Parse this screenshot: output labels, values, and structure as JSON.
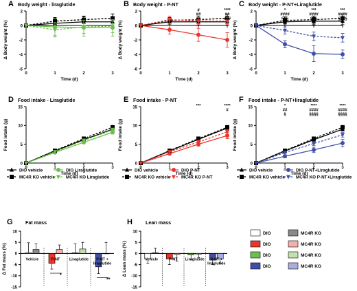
{
  "figure": {
    "time_label": "Time (d)",
    "colors": {
      "black": "#000000",
      "red": "#e8362b",
      "green": "#6cbf4a",
      "blue": "#3f4fa8",
      "grey": "#8a8a8a",
      "pink": "#f2b0ad",
      "light_green": "#bfe1b0",
      "light_blue": "#a9aede"
    },
    "legends": {
      "liraglutide": [
        "DIO vehicle",
        "DIO Liraglutide",
        "MC4R KO vehicle",
        "MC4R KO Liraglutide"
      ],
      "pnt": [
        "DIO vehicle",
        "DIO P-NT",
        "MC4R KO vehicle",
        "MC4R KO P-NT"
      ],
      "combo": [
        "DIO vehicle",
        "DIO P-NT+Liraglutide",
        "MC4R KO vehicle",
        "MC4R KO P-NT+Liraglutide"
      ]
    },
    "key": [
      {
        "label": "DIO",
        "color": "#ffffff"
      },
      {
        "label": "MC4R KO",
        "color": "#8a8a8a"
      },
      {
        "label": "DIO",
        "color": "#e8362b"
      },
      {
        "label": "MC4R KO",
        "color": "#f2b0ad"
      },
      {
        "label": "DIO",
        "color": "#6cbf4a"
      },
      {
        "label": "MC4R KO",
        "color": "#bfe1b0"
      },
      {
        "label": "DIO",
        "color": "#3f4fa8"
      },
      {
        "label": "MC4R KO",
        "color": "#a9aede"
      }
    ]
  },
  "chart_data": [
    {
      "panel": "A",
      "type": "line",
      "title": "Body weight - liraglutide",
      "xlabel": "Time (d)",
      "ylabel": "Δ Body weight (%)",
      "ylim": [
        -6,
        2
      ],
      "yticks": [
        "2",
        "0",
        "-2",
        "-4",
        "-6"
      ],
      "x": [
        0,
        1,
        2,
        3
      ],
      "xticks": [
        "0",
        "1",
        "2",
        "3"
      ],
      "series": [
        {
          "name": "DIO vehicle",
          "color": "#000000",
          "marker": "triangle",
          "dashed": false,
          "values": [
            0,
            0.3,
            0.5,
            0.5
          ],
          "err": [
            0,
            0.6,
            0.7,
            0.7
          ]
        },
        {
          "name": "DIO Liraglutide",
          "color": "#6cbf4a",
          "marker": "circle",
          "dashed": false,
          "values": [
            0,
            -0.2,
            -0.3,
            -0.3
          ],
          "err": [
            0,
            1.2,
            1.2,
            1.2
          ]
        },
        {
          "name": "MC4R KO vehicle",
          "color": "#000000",
          "marker": "square",
          "dashed": true,
          "values": [
            0,
            0.6,
            0.8,
            1.0
          ],
          "err": [
            0,
            0.5,
            0.5,
            0.6
          ]
        },
        {
          "name": "MC4R KO Liraglutide",
          "color": "#6cbf4a",
          "marker": "triangle-down",
          "dashed": true,
          "values": [
            0,
            -0.6,
            -0.2,
            -0.1
          ],
          "err": [
            0,
            1.0,
            0.9,
            0.9
          ]
        }
      ],
      "annotations": []
    },
    {
      "panel": "B",
      "type": "line",
      "title": "Body weight - P-NT",
      "xlabel": "Time (d)",
      "ylabel": "Δ Body weight (%)",
      "ylim": [
        -6,
        2
      ],
      "yticks": [
        "2",
        "0",
        "-2",
        "-4",
        "-6"
      ],
      "x": [
        0,
        1,
        2,
        3
      ],
      "xticks": [
        "0",
        "1",
        "2",
        "3"
      ],
      "series": [
        {
          "name": "DIO vehicle",
          "color": "#000000",
          "marker": "triangle",
          "dashed": false,
          "values": [
            0,
            0.5,
            0.5,
            0.5
          ],
          "err": [
            0,
            0.4,
            0.5,
            0.5
          ]
        },
        {
          "name": "DIO P-NT",
          "color": "#e8362b",
          "marker": "circle",
          "dashed": false,
          "values": [
            0,
            -0.6,
            -1.3,
            -2.0
          ],
          "err": [
            0,
            0.6,
            0.9,
            1.0
          ]
        },
        {
          "name": "MC4R KO vehicle",
          "color": "#000000",
          "marker": "square",
          "dashed": true,
          "values": [
            0,
            0.7,
            0.8,
            1.0
          ],
          "err": [
            0,
            0.4,
            0.5,
            0.5
          ]
        },
        {
          "name": "MC4R KO P-NT",
          "color": "#e8362b",
          "marker": "triangle-down",
          "dashed": true,
          "values": [
            0,
            0.8,
            0.6,
            0.6
          ],
          "err": [
            0,
            0.5,
            0.5,
            0.5
          ]
        }
      ],
      "annotations": [
        {
          "x": 2,
          "lines": [
            "#",
            "##"
          ]
        },
        {
          "x": 3,
          "lines": [
            "****",
            "##",
            "###"
          ]
        }
      ]
    },
    {
      "panel": "C",
      "type": "line",
      "title": "Body weight - P-NT+Liraglutide",
      "xlabel": "Time (d)",
      "ylabel": "Δ Body weight (%)",
      "ylim": [
        -6,
        2
      ],
      "yticks": [
        "2",
        "0",
        "-2",
        "-4",
        "-6"
      ],
      "x": [
        0,
        1,
        2,
        3
      ],
      "xticks": [
        "0",
        "1",
        "2",
        "3"
      ],
      "series": [
        {
          "name": "DIO vehicle",
          "color": "#000000",
          "marker": "triangle",
          "dashed": false,
          "values": [
            0,
            0.5,
            0.6,
            0.6
          ],
          "err": [
            0,
            0.5,
            0.5,
            0.5
          ]
        },
        {
          "name": "DIO P-NT+Liraglutide",
          "color": "#3f4fa8",
          "marker": "circle",
          "dashed": false,
          "values": [
            0,
            -2.6,
            -3.9,
            -4.0
          ],
          "err": [
            0,
            0.5,
            1.1,
            0.6
          ]
        },
        {
          "name": "MC4R KO vehicle",
          "color": "#000000",
          "marker": "square",
          "dashed": true,
          "values": [
            0,
            0.7,
            0.8,
            1.0
          ],
          "err": [
            0,
            0.5,
            0.5,
            0.5
          ]
        },
        {
          "name": "MC4R KO P-NT+Liraglutide",
          "color": "#3f4fa8",
          "marker": "triangle-down",
          "dashed": true,
          "values": [
            0,
            -0.7,
            -1.5,
            -1.7
          ],
          "err": [
            0,
            0.5,
            0.6,
            0.6
          ]
        }
      ],
      "annotations": [
        {
          "x": 1,
          "lines": [
            "*",
            "####",
            "§§§"
          ]
        },
        {
          "x": 2,
          "lines": [
            "***",
            "####",
            "§§§"
          ]
        },
        {
          "x": 3,
          "lines": [
            "***",
            "####",
            "§§§§"
          ]
        }
      ]
    },
    {
      "panel": "D",
      "type": "line",
      "title": "Food intake - Liraglutide",
      "xlabel": "Time (d)",
      "ylabel": "Food intake (g)",
      "ylim": [
        0,
        15
      ],
      "yticks": [
        "0",
        "5",
        "10",
        "15"
      ],
      "x": [
        0,
        1,
        2,
        3
      ],
      "xticks": [
        "0",
        "1",
        "2",
        "3"
      ],
      "series": [
        {
          "name": "DIO vehicle",
          "color": "#000000",
          "marker": "triangle",
          "dashed": false,
          "values": [
            0,
            3.2,
            6.2,
            9.0
          ],
          "err": [
            0,
            0.3,
            0.4,
            0.5
          ]
        },
        {
          "name": "DIO Liraglutide",
          "color": "#6cbf4a",
          "marker": "circle",
          "dashed": false,
          "values": [
            0,
            2.8,
            5.5,
            8.2
          ],
          "err": [
            0,
            0.3,
            0.4,
            0.5
          ]
        },
        {
          "name": "MC4R KO vehicle",
          "color": "#000000",
          "marker": "square",
          "dashed": true,
          "values": [
            0,
            3.3,
            6.5,
            9.5
          ],
          "err": [
            0,
            0.3,
            0.4,
            0.5
          ]
        },
        {
          "name": "MC4R KO Liraglutide",
          "color": "#6cbf4a",
          "marker": "triangle-down",
          "dashed": true,
          "values": [
            0,
            3.0,
            6.0,
            8.8
          ],
          "err": [
            0,
            0.3,
            0.4,
            0.5
          ]
        }
      ],
      "annotations": []
    },
    {
      "panel": "E",
      "type": "line",
      "title": "Food intake - P-NT",
      "xlabel": "Time (d)",
      "ylabel": "Food intake (g)",
      "ylim": [
        0,
        15
      ],
      "yticks": [
        "0",
        "5",
        "10",
        "15"
      ],
      "x": [
        0,
        1,
        2,
        3
      ],
      "xticks": [
        "0",
        "1",
        "2",
        "3"
      ],
      "series": [
        {
          "name": "DIO vehicle",
          "color": "#000000",
          "marker": "triangle",
          "dashed": false,
          "values": [
            0,
            3.2,
            6.3,
            9.3
          ],
          "err": [
            0,
            0.3,
            0.4,
            0.5
          ]
        },
        {
          "name": "DIO P-NT",
          "color": "#e8362b",
          "marker": "circle",
          "dashed": false,
          "values": [
            0,
            2.5,
            5.0,
            7.3
          ],
          "err": [
            0,
            0.3,
            0.5,
            0.8
          ]
        },
        {
          "name": "MC4R KO vehicle",
          "color": "#000000",
          "marker": "square",
          "dashed": true,
          "values": [
            0,
            3.3,
            6.5,
            9.5
          ],
          "err": [
            0,
            0.3,
            0.4,
            0.5
          ]
        },
        {
          "name": "MC4R KO P-NT",
          "color": "#e8362b",
          "marker": "triangle-down",
          "dashed": true,
          "values": [
            0,
            3.0,
            5.6,
            8.3
          ],
          "err": [
            0,
            0.3,
            0.5,
            0.6
          ]
        }
      ],
      "annotations": [
        {
          "x": 2,
          "lines": [
            "***"
          ]
        },
        {
          "x": 3,
          "lines": [
            "****",
            "#"
          ]
        }
      ]
    },
    {
      "panel": "F",
      "type": "line",
      "title": "Food intake - P-NT+liraglutide",
      "xlabel": "Time (d)",
      "ylabel": "Food intake (g)",
      "ylim": [
        0,
        15
      ],
      "yticks": [
        "0",
        "5",
        "10",
        "15"
      ],
      "x": [
        0,
        1,
        2,
        3
      ],
      "xticks": [
        "0",
        "1",
        "2",
        "3"
      ],
      "series": [
        {
          "name": "DIO vehicle",
          "color": "#000000",
          "marker": "triangle",
          "dashed": false,
          "values": [
            0,
            3.2,
            6.2,
            9.0
          ],
          "err": [
            0,
            0.3,
            0.4,
            0.5
          ]
        },
        {
          "name": "DIO P-NT+Liraglutide",
          "color": "#3f4fa8",
          "marker": "circle",
          "dashed": false,
          "values": [
            0,
            1.8,
            3.5,
            5.3
          ],
          "err": [
            0,
            0.4,
            0.7,
            1.0
          ]
        },
        {
          "name": "MC4R KO vehicle",
          "color": "#000000",
          "marker": "square",
          "dashed": true,
          "values": [
            0,
            3.3,
            6.5,
            9.5
          ],
          "err": [
            0,
            0.3,
            0.4,
            0.5
          ]
        },
        {
          "name": "MC4R KO P-NT+Liraglutide",
          "color": "#3f4fa8",
          "marker": "triangle-down",
          "dashed": true,
          "values": [
            0,
            2.8,
            5.2,
            7.5
          ],
          "err": [
            0,
            0.3,
            0.5,
            0.6
          ]
        }
      ],
      "annotations": [
        {
          "x": 1,
          "lines": [
            "*",
            "##",
            "§"
          ]
        },
        {
          "x": 2,
          "lines": [
            "****",
            "####",
            "§§§§"
          ]
        },
        {
          "x": 3,
          "lines": [
            "****",
            "####",
            "§§§§"
          ]
        }
      ]
    },
    {
      "panel": "G",
      "type": "bar",
      "title": "Fat mass",
      "ylabel": "Δ Fat mass (%)",
      "ylim": [
        -15,
        10
      ],
      "yticks": [
        "10",
        "5",
        "0",
        "-5",
        "-10",
        "-15"
      ],
      "groups": [
        "Vehicle",
        "P-NT",
        "Liraglutide",
        "P-NT + liraglutide"
      ],
      "series": [
        {
          "name": "DIO",
          "fills": [
            "#ffffff",
            "#e8362b",
            "#6cbf4a",
            "#3f4fa8"
          ],
          "values": [
            0.3,
            -4.5,
            0.3,
            -6.0
          ],
          "err": [
            4.5,
            2.5,
            4.0,
            3.0
          ]
        },
        {
          "name": "MC4R KO",
          "fills": [
            "#8a8a8a",
            "#f2b0ad",
            "#bfe1b0",
            "#a9aede"
          ],
          "values": [
            1.8,
            1.8,
            2.0,
            0.0
          ],
          "err": [
            2.5,
            2.0,
            3.0,
            5.0
          ]
        }
      ],
      "annotations": [
        {
          "group": 1,
          "text": "*"
        },
        {
          "group": 3,
          "text": "**"
        }
      ]
    },
    {
      "panel": "H",
      "type": "bar",
      "title": "Lean mass",
      "ylabel": "Δ Lean mass (%)",
      "ylim": [
        -15,
        10
      ],
      "yticks": [
        "10",
        "5",
        "0",
        "-5",
        "-10",
        "-15"
      ],
      "groups": [
        "Vehicle",
        "P-NT",
        "Liraglutide",
        "P-NT + liraglutide"
      ],
      "series": [
        {
          "name": "DIO",
          "fills": [
            "#ffffff",
            "#e8362b",
            "#6cbf4a",
            "#3f4fa8"
          ],
          "values": [
            -2.5,
            -2.5,
            -0.7,
            -3.0
          ],
          "err": [
            2.0,
            2.5,
            2.0,
            2.0
          ]
        },
        {
          "name": "MC4R KO",
          "fills": [
            "#8a8a8a",
            "#f2b0ad",
            "#bfe1b0",
            "#a9aede"
          ],
          "values": [
            0.3,
            -0.5,
            -0.3,
            -2.5
          ],
          "err": [
            2.0,
            3.0,
            1.5,
            2.0
          ]
        }
      ],
      "annotations": []
    }
  ]
}
